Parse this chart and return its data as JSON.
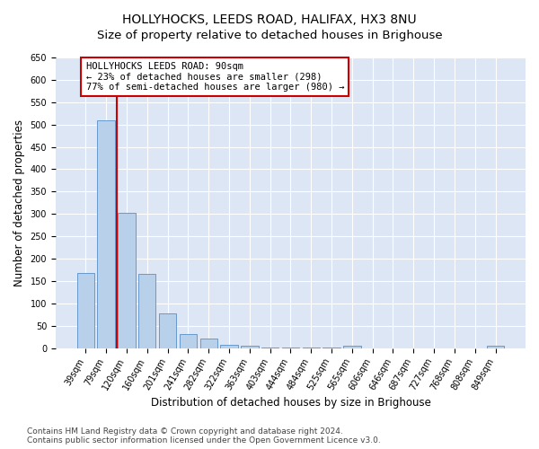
{
  "title": "HOLLYHOCKS, LEEDS ROAD, HALIFAX, HX3 8NU",
  "subtitle": "Size of property relative to detached houses in Brighouse",
  "xlabel": "Distribution of detached houses by size in Brighouse",
  "ylabel": "Number of detached properties",
  "categories": [
    "39sqm",
    "79sqm",
    "120sqm",
    "160sqm",
    "201sqm",
    "241sqm",
    "282sqm",
    "322sqm",
    "363sqm",
    "403sqm",
    "444sqm",
    "484sqm",
    "525sqm",
    "565sqm",
    "606sqm",
    "646sqm",
    "687sqm",
    "727sqm",
    "768sqm",
    "808sqm",
    "849sqm"
  ],
  "values": [
    167,
    510,
    302,
    165,
    78,
    32,
    22,
    7,
    5,
    2,
    1,
    1,
    1,
    5,
    0,
    0,
    0,
    0,
    0,
    0,
    5
  ],
  "bar_color": "#b8d0ea",
  "bar_edge_color": "#6699cc",
  "vline_x": 1.5,
  "vline_color": "#cc0000",
  "annotation_text": "HOLLYHOCKS LEEDS ROAD: 90sqm\n← 23% of detached houses are smaller (298)\n77% of semi-detached houses are larger (980) →",
  "annotation_box_color": "#ffffff",
  "annotation_box_edge": "#cc0000",
  "ylim": [
    0,
    650
  ],
  "yticks": [
    0,
    50,
    100,
    150,
    200,
    250,
    300,
    350,
    400,
    450,
    500,
    550,
    600,
    650
  ],
  "plot_bg": "#dce6f5",
  "footer1": "Contains HM Land Registry data © Crown copyright and database right 2024.",
  "footer2": "Contains public sector information licensed under the Open Government Licence v3.0.",
  "title_fontsize": 10,
  "xlabel_fontsize": 8.5,
  "ylabel_fontsize": 8.5,
  "tick_fontsize": 7,
  "annotation_fontsize": 7.5,
  "footer_fontsize": 6.5
}
